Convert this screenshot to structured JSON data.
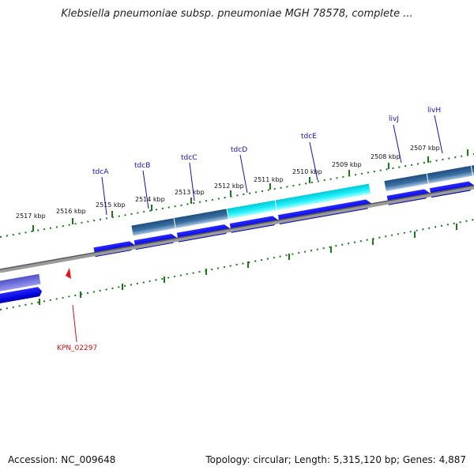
{
  "title": "Klebsiella pneumoniae subsp. pneumoniae MGH 78578, complete ...",
  "accession": "Accession: NC_009648",
  "summary": "Topology: circular; Length: 5,315,120 bp; Genes: 4,887",
  "map": {
    "kbp_labels": [
      "2517 kbp",
      "2516 kbp",
      "2515 kbp",
      "2514 kbp",
      "2513 kbp",
      "2512 kbp",
      "2511 kbp",
      "2510 kbp",
      "2509 kbp",
      "2508 kbp",
      "2507 kbp"
    ],
    "gene_labels": [
      "tdcA",
      "tdcB",
      "tdcC",
      "tdcD",
      "tdcE",
      "livJ",
      "livH"
    ],
    "locus_labels": [
      "KPN_02297"
    ],
    "colors": {
      "cds": "#0a0ae6",
      "feature_dark": "#3a6ea0",
      "feature_cyan": "#10e8f0",
      "feature_purple": "#6a6ad8",
      "backbone": "#808080",
      "ticks": "#1a7a1a",
      "marker": "#e81010"
    }
  }
}
